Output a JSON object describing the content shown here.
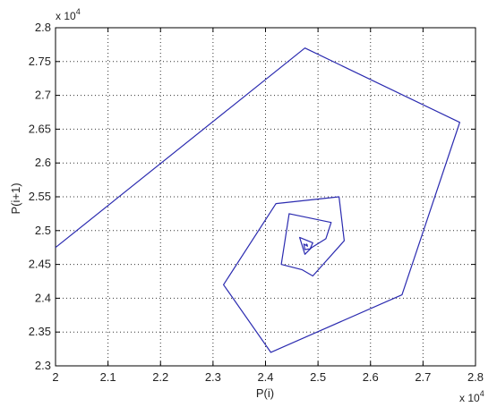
{
  "chart_data": {
    "type": "line",
    "title": "",
    "xlabel": "P(i)",
    "ylabel": "P(i+1)",
    "xlim": [
      20000,
      28000
    ],
    "ylim": [
      23000,
      28000
    ],
    "x_ticks": [
      20000,
      21000,
      22000,
      23000,
      24000,
      25000,
      26000,
      27000,
      28000
    ],
    "y_ticks": [
      23000,
      23500,
      24000,
      24500,
      25000,
      25500,
      26000,
      26500,
      27000,
      27500,
      28000
    ],
    "x_tick_labels": [
      "2",
      "2.1",
      "2.2",
      "2.3",
      "2.4",
      "2.5",
      "2.6",
      "2.7",
      "2.8"
    ],
    "y_tick_labels": [
      "2.3",
      "2.35",
      "2.4",
      "2.45",
      "2.5",
      "2.55",
      "2.6",
      "2.65",
      "2.7",
      "2.75",
      "2.8"
    ],
    "x_multiplier": {
      "base": "x 10",
      "exp": "4"
    },
    "y_multiplier": {
      "base": "x 10",
      "exp": "4"
    },
    "grid": true,
    "grid_style": "dotted",
    "line_color": "#2b2bb0",
    "series": [
      {
        "x": [
          20000,
          24750,
          27700,
          26600,
          24100,
          23200,
          24200,
          25400,
          25500,
          24900,
          24700,
          24300,
          24450,
          25250,
          25150,
          24880,
          24750,
          24650,
          24900,
          24850,
          24750,
          24730,
          24800,
          24780,
          24800
        ],
        "y": [
          24750,
          27700,
          26600,
          24050,
          23200,
          24200,
          25400,
          25500,
          24850,
          24330,
          24420,
          24500,
          25250,
          25120,
          24880,
          24750,
          24650,
          24900,
          24820,
          24730,
          24720,
          24800,
          24770,
          24800,
          24790
        ]
      }
    ]
  }
}
